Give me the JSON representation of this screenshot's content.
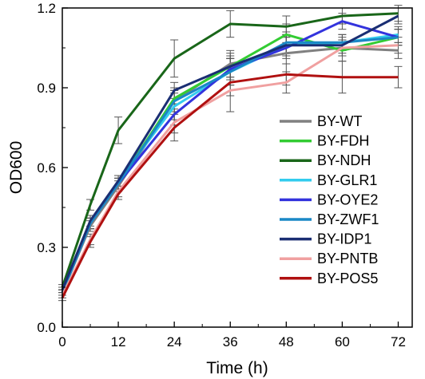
{
  "chart_data": {
    "type": "line",
    "xlabel": "Time (h)",
    "ylabel": "OD600",
    "xlim": [
      0,
      75
    ],
    "ylim": [
      0.0,
      1.2
    ],
    "xticks": [
      0,
      12,
      24,
      36,
      48,
      60,
      72
    ],
    "yticks": [
      0.0,
      0.3,
      0.6,
      0.9,
      1.2
    ],
    "x_tick_labels": [
      "0",
      "12",
      "24",
      "36",
      "48",
      "60",
      "72"
    ],
    "y_tick_labels": [
      "0.0",
      "0.3",
      "0.6",
      "0.9",
      "1.2"
    ],
    "x": [
      0,
      6,
      12,
      24,
      36,
      48,
      60,
      72
    ],
    "error_bars": true,
    "legend_position": "right",
    "grid": false,
    "series": [
      {
        "name": "BY-WT",
        "color": "#808080",
        "values": [
          0.13,
          0.38,
          0.53,
          0.85,
          0.99,
          1.03,
          1.05,
          1.04
        ],
        "errors": [
          0.01,
          0.02,
          0.02,
          0.04,
          0.05,
          0.04,
          0.03,
          0.03
        ]
      },
      {
        "name": "BY-FDH",
        "color": "#33cc33",
        "values": [
          0.13,
          0.39,
          0.54,
          0.86,
          0.98,
          1.1,
          1.04,
          1.09
        ],
        "errors": [
          0.01,
          0.02,
          0.02,
          0.04,
          0.05,
          0.04,
          0.04,
          0.03
        ]
      },
      {
        "name": "BY-NDH",
        "color": "#196619",
        "values": [
          0.15,
          0.46,
          0.74,
          1.01,
          1.14,
          1.13,
          1.17,
          1.18
        ],
        "errors": [
          0.01,
          0.02,
          0.05,
          0.07,
          0.05,
          0.04,
          0.03,
          0.03
        ]
      },
      {
        "name": "BY-GLR1",
        "color": "#33ccee",
        "values": [
          0.13,
          0.39,
          0.55,
          0.83,
          0.96,
          1.06,
          1.07,
          1.1
        ],
        "errors": [
          0.01,
          0.02,
          0.02,
          0.05,
          0.05,
          0.04,
          0.03,
          0.03
        ]
      },
      {
        "name": "BY-OYE2",
        "color": "#3333dd",
        "values": [
          0.13,
          0.39,
          0.54,
          0.8,
          0.97,
          1.05,
          1.15,
          1.09
        ],
        "errors": [
          0.01,
          0.02,
          0.02,
          0.04,
          0.04,
          0.04,
          0.03,
          0.03
        ]
      },
      {
        "name": "BY-ZWF1",
        "color": "#1a88c6",
        "values": [
          0.13,
          0.39,
          0.54,
          0.85,
          0.96,
          1.07,
          1.07,
          1.09
        ],
        "errors": [
          0.01,
          0.02,
          0.02,
          0.04,
          0.05,
          0.04,
          0.03,
          0.03
        ]
      },
      {
        "name": "BY-IDP1",
        "color": "#1a2e73",
        "values": [
          0.14,
          0.4,
          0.55,
          0.89,
          0.98,
          1.06,
          1.06,
          1.17
        ],
        "errors": [
          0.01,
          0.02,
          0.02,
          0.03,
          0.04,
          0.04,
          0.03,
          0.03
        ]
      },
      {
        "name": "BY-PNTB",
        "color": "#f0a0a0",
        "values": [
          0.12,
          0.33,
          0.51,
          0.77,
          0.89,
          0.92,
          1.05,
          1.06
        ],
        "errors": [
          0.01,
          0.02,
          0.02,
          0.04,
          0.08,
          0.04,
          0.03,
          0.03
        ]
      },
      {
        "name": "BY-POS5",
        "color": "#b01010",
        "values": [
          0.11,
          0.32,
          0.5,
          0.75,
          0.92,
          0.95,
          0.94,
          0.94
        ],
        "errors": [
          0.01,
          0.02,
          0.02,
          0.05,
          0.05,
          0.04,
          0.06,
          0.04
        ]
      }
    ]
  }
}
